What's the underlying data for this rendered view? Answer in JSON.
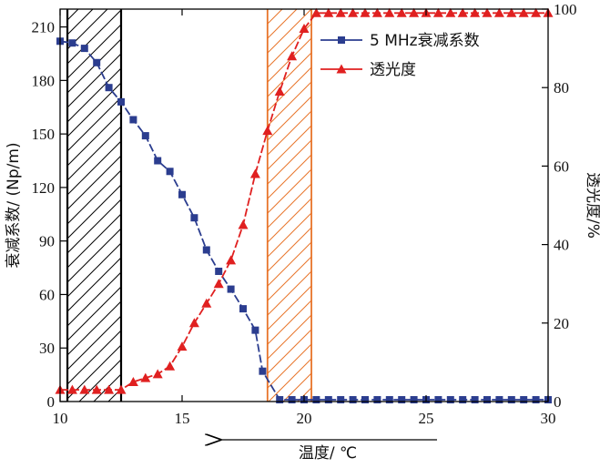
{
  "chart_data": {
    "type": "line",
    "xlabel": "温度/ ℃",
    "ylabel_left": "衰减系数/ (Np/m)",
    "ylabel_right": "透光度/%",
    "xlim": [
      10,
      30
    ],
    "ylim_left": [
      0,
      220
    ],
    "ylim_right": [
      0,
      100
    ],
    "x_ticks": [
      10,
      15,
      20,
      25,
      30
    ],
    "y_left_ticks": [
      0,
      30,
      60,
      90,
      120,
      150,
      180,
      210
    ],
    "y_right_ticks": [
      0,
      20,
      40,
      60,
      80,
      100
    ],
    "legend_position": "top-right",
    "grid": false,
    "arrow_direction": "left",
    "hatched_regions": [
      {
        "x0": 10.3,
        "x1": 12.5,
        "color": "#000000"
      },
      {
        "x0": 18.5,
        "x1": 20.3,
        "color": "#e8742a"
      }
    ],
    "series": [
      {
        "name": "5 MHz衰减系数",
        "axis": "left",
        "color": "#2b3d8f",
        "marker": "square",
        "points": [
          [
            10,
            202
          ],
          [
            10.5,
            201
          ],
          [
            11,
            198
          ],
          [
            11.5,
            190
          ],
          [
            12,
            176
          ],
          [
            12.5,
            168
          ],
          [
            13,
            158
          ],
          [
            13.5,
            149
          ],
          [
            14,
            135
          ],
          [
            14.5,
            129
          ],
          [
            15,
            116
          ],
          [
            15.5,
            103
          ],
          [
            16,
            85
          ],
          [
            16.5,
            73
          ],
          [
            17,
            63
          ],
          [
            17.5,
            52
          ],
          [
            18,
            40
          ],
          [
            18.3,
            17
          ],
          [
            19,
            1
          ],
          [
            19.5,
            1
          ],
          [
            20,
            1
          ],
          [
            20.5,
            1
          ],
          [
            21,
            1
          ],
          [
            21.5,
            1
          ],
          [
            22,
            1
          ],
          [
            22.5,
            1
          ],
          [
            23,
            1
          ],
          [
            23.5,
            1
          ],
          [
            24,
            1
          ],
          [
            24.5,
            1
          ],
          [
            25,
            1
          ],
          [
            25.5,
            1
          ],
          [
            26,
            1
          ],
          [
            26.5,
            1
          ],
          [
            27,
            1
          ],
          [
            27.5,
            1
          ],
          [
            28,
            1
          ],
          [
            28.5,
            1
          ],
          [
            29,
            1
          ],
          [
            29.5,
            1
          ],
          [
            30,
            1
          ]
        ]
      },
      {
        "name": "透光度",
        "axis": "right",
        "color": "#e02020",
        "marker": "triangle",
        "points": [
          [
            10,
            3
          ],
          [
            10.5,
            3
          ],
          [
            11,
            3
          ],
          [
            11.5,
            3
          ],
          [
            12,
            3
          ],
          [
            12.5,
            3
          ],
          [
            13,
            5
          ],
          [
            13.5,
            6
          ],
          [
            14,
            7
          ],
          [
            14.5,
            9
          ],
          [
            15,
            14
          ],
          [
            15.5,
            20
          ],
          [
            16,
            25
          ],
          [
            16.5,
            30
          ],
          [
            17,
            36
          ],
          [
            17.5,
            45
          ],
          [
            18,
            58
          ],
          [
            18.5,
            69
          ],
          [
            19,
            79
          ],
          [
            19.5,
            88
          ],
          [
            20,
            95
          ],
          [
            20.5,
            99
          ],
          [
            21,
            99
          ],
          [
            21.5,
            99
          ],
          [
            22,
            99
          ],
          [
            22.5,
            99
          ],
          [
            23,
            99
          ],
          [
            23.5,
            99
          ],
          [
            24,
            99
          ],
          [
            24.5,
            99
          ],
          [
            25,
            99
          ],
          [
            25.5,
            99
          ],
          [
            26,
            99
          ],
          [
            26.5,
            99
          ],
          [
            27,
            99
          ],
          [
            27.5,
            99
          ],
          [
            28,
            99
          ],
          [
            28.5,
            99
          ],
          [
            29,
            99
          ],
          [
            29.5,
            99
          ],
          [
            30,
            99
          ]
        ]
      }
    ]
  }
}
